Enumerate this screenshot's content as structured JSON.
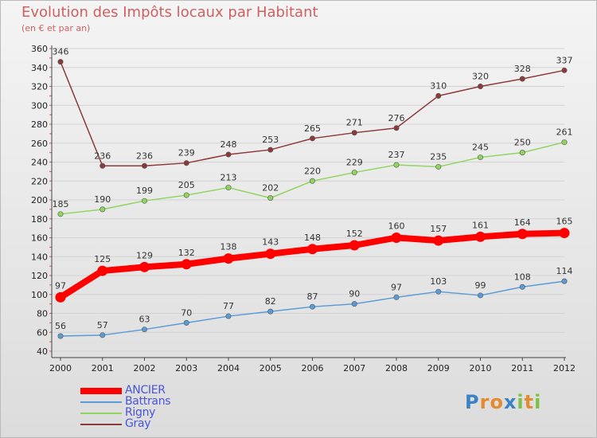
{
  "title": "Evolution des Impôts locaux par Habitant",
  "subtitle": "(en € et par an)",
  "logo": "Proxiti",
  "chart_data": {
    "type": "line",
    "title": "Evolution des Impôts locaux par Habitant",
    "ylabel": "(en € et par an)",
    "xlabel": "",
    "ylim": [
      40,
      360
    ],
    "y_ticks": [
      40,
      60,
      80,
      100,
      120,
      140,
      160,
      180,
      200,
      220,
      240,
      260,
      280,
      300,
      320,
      340,
      360
    ],
    "categories": [
      "2000",
      "2001",
      "2002",
      "2003",
      "2004",
      "2005",
      "2006",
      "2007",
      "2008",
      "2009",
      "2010",
      "2011",
      "2012"
    ],
    "legend_position": "bottom-left",
    "series": [
      {
        "name": "ANCIER",
        "color": "#ff0000",
        "values": [
          97,
          125,
          129,
          132,
          138,
          143,
          148,
          152,
          160,
          157,
          161,
          164,
          165
        ]
      },
      {
        "name": "Battrans",
        "color": "#5b9bd5",
        "values": [
          56,
          57,
          63,
          70,
          77,
          82,
          87,
          90,
          97,
          103,
          99,
          108,
          114
        ]
      },
      {
        "name": "Rigny",
        "color": "#8fd45e",
        "values": [
          185,
          190,
          199,
          205,
          213,
          202,
          220,
          229,
          237,
          235,
          245,
          250,
          261
        ]
      },
      {
        "name": "Gray",
        "color": "#8b3a3a",
        "values": [
          346,
          236,
          236,
          239,
          248,
          253,
          265,
          271,
          276,
          310,
          320,
          328,
          337
        ]
      }
    ]
  }
}
